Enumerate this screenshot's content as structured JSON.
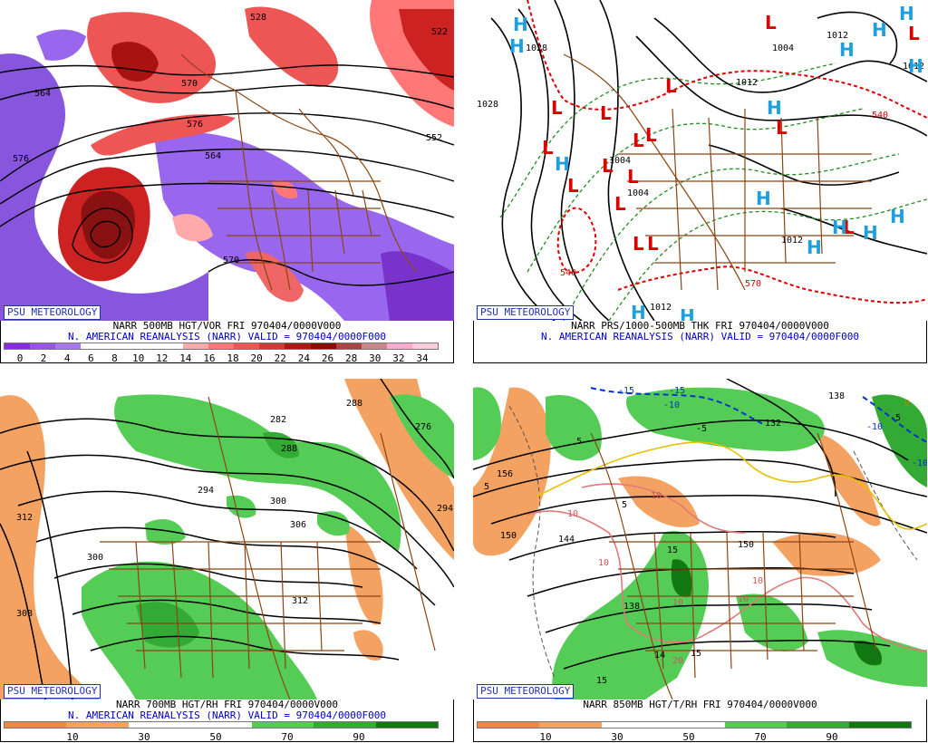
{
  "panels": [
    {
      "id": "500mb",
      "logo": "PSU METEOROLOGY",
      "caption_line1": "NARR 500MB HGT/VOR FRI 970404/0000V000",
      "caption_line2": "N. AMERICAN REANALYSIS (NARR) VALID = 970404/0000F000",
      "colorbar": [
        "#8a2be2",
        "#9955dd",
        "#aa77ee",
        "#ffffff",
        "#ffffff",
        "#ffffff",
        "#ffffff",
        "#ffaaaa",
        "#ff7777",
        "#ee5555",
        "#dd3333",
        "#bb1111",
        "#990000",
        "#aa4444",
        "#cc8888",
        "#ffaacc",
        "#ffccdd"
      ],
      "ticks": [
        "0",
        "2",
        "4",
        "6",
        "8",
        "10",
        "12",
        "14",
        "16",
        "18",
        "20",
        "22",
        "24",
        "26",
        "28",
        "30",
        "32",
        "34"
      ],
      "contour_labels": [
        "528",
        "522",
        "570",
        "564",
        "576",
        "564",
        "570",
        "552",
        "576"
      ]
    },
    {
      "id": "pmsl",
      "logo": "PSU METEOROLOGY",
      "caption_line1": "NARR PRS/1000-500MB THK FRI 970404/0000V000",
      "caption_line2": "N. AMERICAN REANALYSIS (NARR) VALID = 970404/0000F000",
      "contour_labels": [
        "1028",
        "1028",
        "1004",
        "1012",
        "1004",
        "1012",
        "540",
        "1004",
        "1012",
        "1012",
        "540",
        "570",
        "1012"
      ],
      "highs": 16,
      "lows": 16
    },
    {
      "id": "700mb",
      "logo": "PSU METEOROLOGY",
      "caption_line1": "NARR 700MB HGT/RH FRI 970404/0000V000",
      "caption_line2": "N. AMERICAN REANALYSIS (NARR) VALID = 970404/0000F000",
      "colorbar": [
        "#ee8844",
        "#f4a261",
        "#ffffff",
        "#ffffff",
        "#55cc55",
        "#33aa33",
        "#117711"
      ],
      "ticks": [
        "10",
        "30",
        "50",
        "70",
        "90"
      ],
      "contour_labels": [
        "288",
        "282",
        "288",
        "276",
        "294",
        "300",
        "306",
        "312",
        "300",
        "294",
        "308",
        "312"
      ]
    },
    {
      "id": "850mb",
      "logo": "PSU METEOROLOGY",
      "caption_line1": "NARR 850MB HGT/T/RH FRI 970404/0000V000",
      "caption_line2": "",
      "colorbar": [
        "#ee8844",
        "#f4a261",
        "#ffffff",
        "#ffffff",
        "#55cc55",
        "#33aa33",
        "#117711"
      ],
      "ticks": [
        "10",
        "30",
        "50",
        "70",
        "90"
      ],
      "contour_labels": [
        "-15",
        "-15",
        "-10",
        "-10",
        "-5",
        "132",
        "138",
        "156",
        "150",
        "144",
        "150",
        "138",
        "5",
        "5",
        "5",
        "15",
        "15",
        "10",
        "10",
        "10",
        "10",
        "10",
        "10",
        "20",
        "14",
        "15",
        "0",
        "-5",
        "-10"
      ]
    }
  ]
}
